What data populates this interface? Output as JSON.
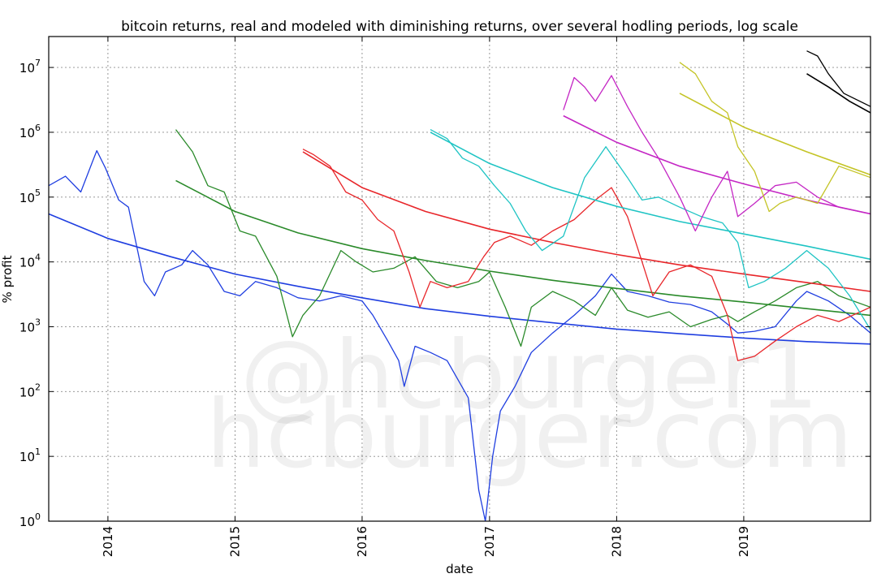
{
  "chart_data": {
    "type": "line",
    "title": "bitcoin returns, real and modeled with diminishing returns, over several hodling periods, log scale",
    "xlabel": "date",
    "ylabel": "% profit",
    "x_ticks": [
      "2014",
      "2015",
      "2016",
      "2017",
      "2018",
      "2019"
    ],
    "y_scale": "log",
    "y_ticks": [
      {
        "value": 1,
        "base": "10",
        "exp": "0"
      },
      {
        "value": 10,
        "base": "10",
        "exp": "1"
      },
      {
        "value": 100,
        "base": "10",
        "exp": "2"
      },
      {
        "value": 1000,
        "base": "10",
        "exp": "3"
      },
      {
        "value": 10000,
        "base": "10",
        "exp": "4"
      },
      {
        "value": 100000,
        "base": "10",
        "exp": "5"
      },
      {
        "value": 1000000,
        "base": "10",
        "exp": "6"
      },
      {
        "value": 10000000,
        "base": "10",
        "exp": "7"
      }
    ],
    "xlim": [
      "2013-07-15",
      "2019-12-31"
    ],
    "ylim": [
      1,
      30000000
    ],
    "grid": true,
    "legend": "none",
    "watermark": [
      "@hcburger1",
      "hcburger.com"
    ],
    "series": [
      {
        "color": "#1f3ee0",
        "kind": "real",
        "points": [
          [
            "2013-07-15",
            150000
          ],
          [
            "2013-09-01",
            210000
          ],
          [
            "2013-10-15",
            120000
          ],
          [
            "2013-11-20",
            380000
          ],
          [
            "2013-11-30",
            520000
          ],
          [
            "2013-12-25",
            280000
          ],
          [
            "2014-02-01",
            90000
          ],
          [
            "2014-03-01",
            70000
          ],
          [
            "2014-04-15",
            5000
          ],
          [
            "2014-05-15",
            3000
          ],
          [
            "2014-06-15",
            7000
          ],
          [
            "2014-08-01",
            9000
          ],
          [
            "2014-09-01",
            15000
          ],
          [
            "2014-10-15",
            9000
          ],
          [
            "2014-12-01",
            3500
          ],
          [
            "2015-01-15",
            3000
          ],
          [
            "2015-03-01",
            5000
          ],
          [
            "2015-05-01",
            4000
          ],
          [
            "2015-07-01",
            2800
          ],
          [
            "2015-09-01",
            2500
          ],
          [
            "2015-11-01",
            3000
          ],
          [
            "2016-01-01",
            2500
          ],
          [
            "2016-02-01",
            1500
          ],
          [
            "2016-03-15",
            600
          ],
          [
            "2016-04-15",
            300
          ],
          [
            "2016-05-01",
            120
          ],
          [
            "2016-06-01",
            500
          ],
          [
            "2016-07-15",
            400
          ],
          [
            "2016-09-01",
            300
          ],
          [
            "2016-11-01",
            80
          ],
          [
            "2016-12-01",
            3
          ],
          [
            "2016-12-20",
            1
          ],
          [
            "2017-01-10",
            10
          ],
          [
            "2017-02-01",
            50
          ],
          [
            "2017-03-15",
            120
          ],
          [
            "2017-05-01",
            400
          ],
          [
            "2017-07-01",
            800
          ],
          [
            "2017-09-01",
            1500
          ],
          [
            "2017-11-01",
            3000
          ],
          [
            "2017-12-17",
            6500
          ],
          [
            "2018-02-01",
            3500
          ],
          [
            "2018-04-01",
            3000
          ],
          [
            "2018-06-01",
            2400
          ],
          [
            "2018-08-01",
            2200
          ],
          [
            "2018-10-01",
            1700
          ],
          [
            "2018-11-15",
            1100
          ],
          [
            "2018-12-15",
            800
          ],
          [
            "2019-02-01",
            850
          ],
          [
            "2019-04-01",
            1000
          ],
          [
            "2019-06-01",
            2500
          ],
          [
            "2019-07-01",
            3500
          ],
          [
            "2019-09-01",
            2500
          ],
          [
            "2019-11-01",
            1500
          ],
          [
            "2019-12-31",
            800
          ]
        ]
      },
      {
        "color": "#1f3ee0",
        "kind": "model",
        "points": [
          [
            "2013-07-15",
            55000
          ],
          [
            "2014-01-01",
            23000
          ],
          [
            "2014-07-01",
            12000
          ],
          [
            "2015-01-01",
            6500
          ],
          [
            "2015-07-01",
            4200
          ],
          [
            "2016-01-01",
            2800
          ],
          [
            "2016-07-01",
            1900
          ],
          [
            "2017-01-01",
            1450
          ],
          [
            "2017-07-01",
            1150
          ],
          [
            "2018-01-01",
            920
          ],
          [
            "2018-07-01",
            780
          ],
          [
            "2019-01-01",
            670
          ],
          [
            "2019-07-01",
            590
          ],
          [
            "2019-12-31",
            540
          ]
        ]
      },
      {
        "color": "#2a8a2a",
        "kind": "real",
        "points": [
          [
            "2014-07-15",
            1100000
          ],
          [
            "2014-09-01",
            500000
          ],
          [
            "2014-10-15",
            150000
          ],
          [
            "2014-12-01",
            120000
          ],
          [
            "2015-01-15",
            30000
          ],
          [
            "2015-03-01",
            25000
          ],
          [
            "2015-05-01",
            6000
          ],
          [
            "2015-06-15",
            700
          ],
          [
            "2015-07-15",
            1500
          ],
          [
            "2015-09-01",
            3000
          ],
          [
            "2015-11-01",
            15000
          ],
          [
            "2015-12-15",
            10000
          ],
          [
            "2016-02-01",
            7000
          ],
          [
            "2016-04-01",
            8000
          ],
          [
            "2016-06-01",
            12000
          ],
          [
            "2016-08-01",
            5000
          ],
          [
            "2016-10-01",
            4000
          ],
          [
            "2016-12-01",
            5000
          ],
          [
            "2017-01-01",
            7000
          ],
          [
            "2017-02-15",
            2000
          ],
          [
            "2017-04-01",
            500
          ],
          [
            "2017-05-01",
            2000
          ],
          [
            "2017-07-01",
            3500
          ],
          [
            "2017-09-01",
            2500
          ],
          [
            "2017-11-01",
            1500
          ],
          [
            "2017-12-17",
            4000
          ],
          [
            "2018-02-01",
            1800
          ],
          [
            "2018-04-01",
            1400
          ],
          [
            "2018-06-01",
            1700
          ],
          [
            "2018-08-01",
            1000
          ],
          [
            "2018-10-01",
            1300
          ],
          [
            "2018-11-15",
            1500
          ],
          [
            "2018-12-15",
            1200
          ],
          [
            "2019-02-01",
            1700
          ],
          [
            "2019-04-01",
            2500
          ],
          [
            "2019-06-01",
            4000
          ],
          [
            "2019-08-01",
            5000
          ],
          [
            "2019-10-01",
            3000
          ],
          [
            "2019-12-31",
            2000
          ]
        ]
      },
      {
        "color": "#2a8a2a",
        "kind": "model",
        "points": [
          [
            "2014-07-15",
            180000
          ],
          [
            "2015-01-01",
            60000
          ],
          [
            "2015-07-01",
            28000
          ],
          [
            "2016-01-01",
            16000
          ],
          [
            "2016-07-01",
            10500
          ],
          [
            "2017-01-01",
            7200
          ],
          [
            "2017-07-01",
            5200
          ],
          [
            "2018-01-01",
            3900
          ],
          [
            "2018-07-01",
            3000
          ],
          [
            "2019-01-01",
            2400
          ],
          [
            "2019-07-01",
            1900
          ],
          [
            "2019-12-31",
            1500
          ]
        ]
      },
      {
        "color": "#e8262a",
        "kind": "real",
        "points": [
          [
            "2015-07-15",
            550000
          ],
          [
            "2015-08-15",
            450000
          ],
          [
            "2015-10-01",
            300000
          ],
          [
            "2015-11-15",
            120000
          ],
          [
            "2016-01-01",
            90000
          ],
          [
            "2016-02-15",
            45000
          ],
          [
            "2016-04-01",
            30000
          ],
          [
            "2016-05-15",
            7000
          ],
          [
            "2016-06-15",
            2000
          ],
          [
            "2016-07-15",
            5000
          ],
          [
            "2016-09-01",
            4000
          ],
          [
            "2016-11-01",
            5000
          ],
          [
            "2016-12-15",
            12000
          ],
          [
            "2017-01-15",
            20000
          ],
          [
            "2017-03-01",
            25000
          ],
          [
            "2017-05-01",
            18000
          ],
          [
            "2017-07-01",
            30000
          ],
          [
            "2017-09-01",
            45000
          ],
          [
            "2017-11-01",
            90000
          ],
          [
            "2017-12-17",
            140000
          ],
          [
            "2018-02-01",
            50000
          ],
          [
            "2018-03-15",
            10000
          ],
          [
            "2018-04-15",
            3000
          ],
          [
            "2018-06-01",
            7000
          ],
          [
            "2018-08-01",
            9000
          ],
          [
            "2018-10-01",
            6000
          ],
          [
            "2018-11-15",
            1500
          ],
          [
            "2018-12-15",
            300
          ],
          [
            "2019-02-01",
            350
          ],
          [
            "2019-04-01",
            600
          ],
          [
            "2019-06-01",
            1000
          ],
          [
            "2019-08-01",
            1500
          ],
          [
            "2019-10-01",
            1200
          ],
          [
            "2019-12-31",
            2000
          ]
        ]
      },
      {
        "color": "#e8262a",
        "kind": "model",
        "points": [
          [
            "2015-07-15",
            500000
          ],
          [
            "2016-01-01",
            140000
          ],
          [
            "2016-07-01",
            60000
          ],
          [
            "2017-01-01",
            32000
          ],
          [
            "2017-07-01",
            20000
          ],
          [
            "2018-01-01",
            13000
          ],
          [
            "2018-07-01",
            9000
          ],
          [
            "2019-01-01",
            6500
          ],
          [
            "2019-07-01",
            4800
          ],
          [
            "2019-12-31",
            3500
          ]
        ]
      },
      {
        "color": "#1fc4c4",
        "kind": "real",
        "points": [
          [
            "2016-07-15",
            1100000
          ],
          [
            "2016-09-01",
            800000
          ],
          [
            "2016-10-15",
            400000
          ],
          [
            "2016-12-01",
            300000
          ],
          [
            "2017-01-15",
            150000
          ],
          [
            "2017-03-01",
            80000
          ],
          [
            "2017-04-15",
            30000
          ],
          [
            "2017-06-01",
            15000
          ],
          [
            "2017-08-01",
            25000
          ],
          [
            "2017-10-01",
            200000
          ],
          [
            "2017-12-01",
            600000
          ],
          [
            "2018-02-01",
            200000
          ],
          [
            "2018-03-15",
            90000
          ],
          [
            "2018-05-01",
            100000
          ],
          [
            "2018-07-01",
            70000
          ],
          [
            "2018-09-01",
            50000
          ],
          [
            "2018-11-01",
            40000
          ],
          [
            "2018-12-15",
            20000
          ],
          [
            "2019-01-15",
            4000
          ],
          [
            "2019-03-01",
            5000
          ],
          [
            "2019-05-01",
            8000
          ],
          [
            "2019-07-01",
            15000
          ],
          [
            "2019-09-01",
            8000
          ],
          [
            "2019-11-01",
            3000
          ],
          [
            "2019-12-31",
            900
          ]
        ]
      },
      {
        "color": "#1fc4c4",
        "kind": "model",
        "points": [
          [
            "2016-07-15",
            1000000
          ],
          [
            "2017-01-01",
            330000
          ],
          [
            "2017-07-01",
            140000
          ],
          [
            "2018-01-01",
            72000
          ],
          [
            "2018-07-01",
            42000
          ],
          [
            "2019-01-01",
            27000
          ],
          [
            "2019-07-01",
            17500
          ],
          [
            "2019-12-31",
            11000
          ]
        ]
      },
      {
        "color": "#c426c4",
        "kind": "real",
        "points": [
          [
            "2017-08-01",
            2200000
          ],
          [
            "2017-09-01",
            7000000
          ],
          [
            "2017-10-01",
            5000000
          ],
          [
            "2017-11-01",
            3000000
          ],
          [
            "2017-12-17",
            7500000
          ],
          [
            "2018-02-01",
            2500000
          ],
          [
            "2018-03-15",
            1000000
          ],
          [
            "2018-05-01",
            400000
          ],
          [
            "2018-07-01",
            100000
          ],
          [
            "2018-08-15",
            30000
          ],
          [
            "2018-10-01",
            100000
          ],
          [
            "2018-11-15",
            250000
          ],
          [
            "2018-12-15",
            50000
          ],
          [
            "2019-02-01",
            80000
          ],
          [
            "2019-04-01",
            150000
          ],
          [
            "2019-06-01",
            170000
          ],
          [
            "2019-08-01",
            100000
          ],
          [
            "2019-10-01",
            70000
          ],
          [
            "2019-12-31",
            55000
          ]
        ]
      },
      {
        "color": "#c426c4",
        "kind": "model",
        "points": [
          [
            "2017-08-01",
            1800000
          ],
          [
            "2018-01-01",
            700000
          ],
          [
            "2018-07-01",
            300000
          ],
          [
            "2019-01-01",
            160000
          ],
          [
            "2019-07-01",
            90000
          ],
          [
            "2019-12-31",
            55000
          ]
        ]
      },
      {
        "color": "#c4c426",
        "kind": "real",
        "points": [
          [
            "2018-07-01",
            12000000
          ],
          [
            "2018-08-15",
            8000000
          ],
          [
            "2018-10-01",
            3000000
          ],
          [
            "2018-11-15",
            2000000
          ],
          [
            "2018-12-15",
            600000
          ],
          [
            "2019-02-01",
            250000
          ],
          [
            "2019-03-15",
            60000
          ],
          [
            "2019-04-15",
            80000
          ],
          [
            "2019-06-01",
            100000
          ],
          [
            "2019-08-01",
            80000
          ],
          [
            "2019-10-01",
            300000
          ],
          [
            "2019-12-31",
            200000
          ]
        ]
      },
      {
        "color": "#c4c426",
        "kind": "model",
        "points": [
          [
            "2018-07-01",
            4000000
          ],
          [
            "2019-01-01",
            1200000
          ],
          [
            "2019-07-01",
            500000
          ],
          [
            "2019-12-31",
            220000
          ]
        ]
      },
      {
        "color": "#000000",
        "kind": "real",
        "points": [
          [
            "2019-07-01",
            18000000
          ],
          [
            "2019-08-01",
            15000000
          ],
          [
            "2019-09-01",
            8000000
          ],
          [
            "2019-10-15",
            4000000
          ],
          [
            "2019-12-31",
            2500000
          ]
        ]
      },
      {
        "color": "#000000",
        "kind": "model",
        "points": [
          [
            "2019-07-01",
            8000000
          ],
          [
            "2019-09-01",
            5000000
          ],
          [
            "2019-11-01",
            3000000
          ],
          [
            "2019-12-31",
            2000000
          ]
        ]
      }
    ]
  }
}
